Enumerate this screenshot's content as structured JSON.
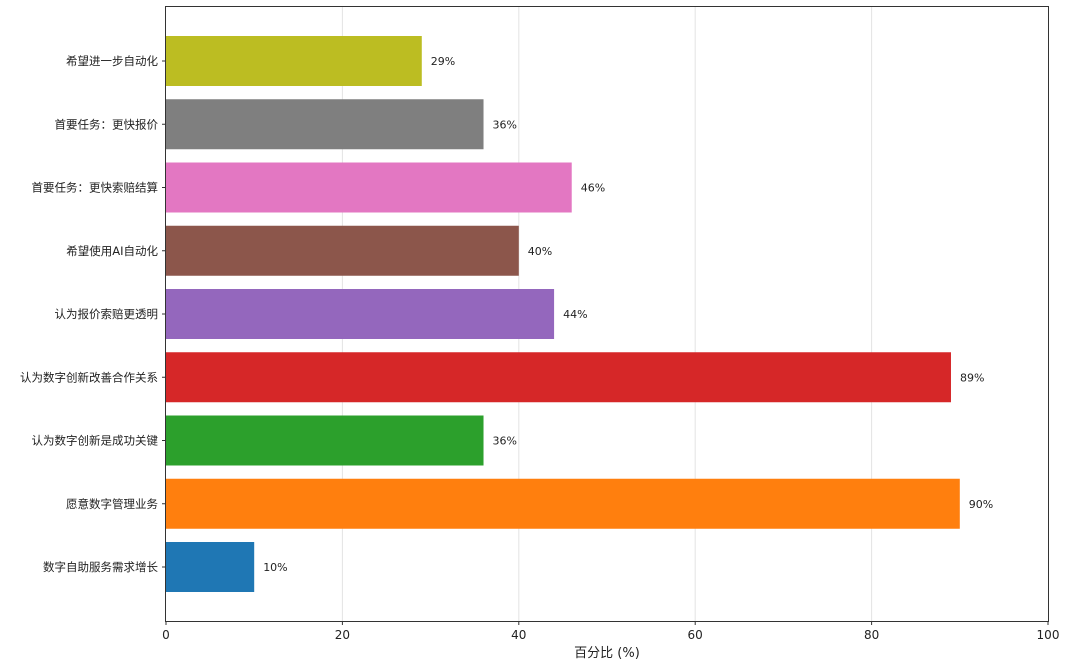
{
  "chart_data": {
    "type": "bar",
    "orientation": "horizontal",
    "categories": [
      "数字自助服务需求增长",
      "愿意数字管理业务",
      "认为数字创新是成功关键",
      "认为数字创新改善合作关系",
      "认为报价索赔更透明",
      "希望使用AI自动化",
      "首要任务：更快索赔结算",
      "首要任务：更快报价",
      "希望进一步自动化"
    ],
    "values": [
      10,
      90,
      36,
      89,
      44,
      40,
      46,
      36,
      29
    ],
    "value_labels": [
      "10%",
      "90%",
      "36%",
      "89%",
      "44%",
      "40%",
      "46%",
      "36%",
      "29%"
    ],
    "colors": [
      "#1f77b4",
      "#ff7f0e",
      "#2ca02c",
      "#d62728",
      "#9467bd",
      "#8c564b",
      "#e377c2",
      "#7f7f7f",
      "#bcbd22"
    ],
    "xlabel": "百分比 (%)",
    "ylabel": "",
    "title": "",
    "xlim": [
      0,
      100
    ],
    "xticks": [
      0,
      20,
      40,
      60,
      80,
      100
    ],
    "xtick_labels": [
      "0",
      "20",
      "40",
      "60",
      "80",
      "100"
    ],
    "grid": "x",
    "legend": "none"
  }
}
